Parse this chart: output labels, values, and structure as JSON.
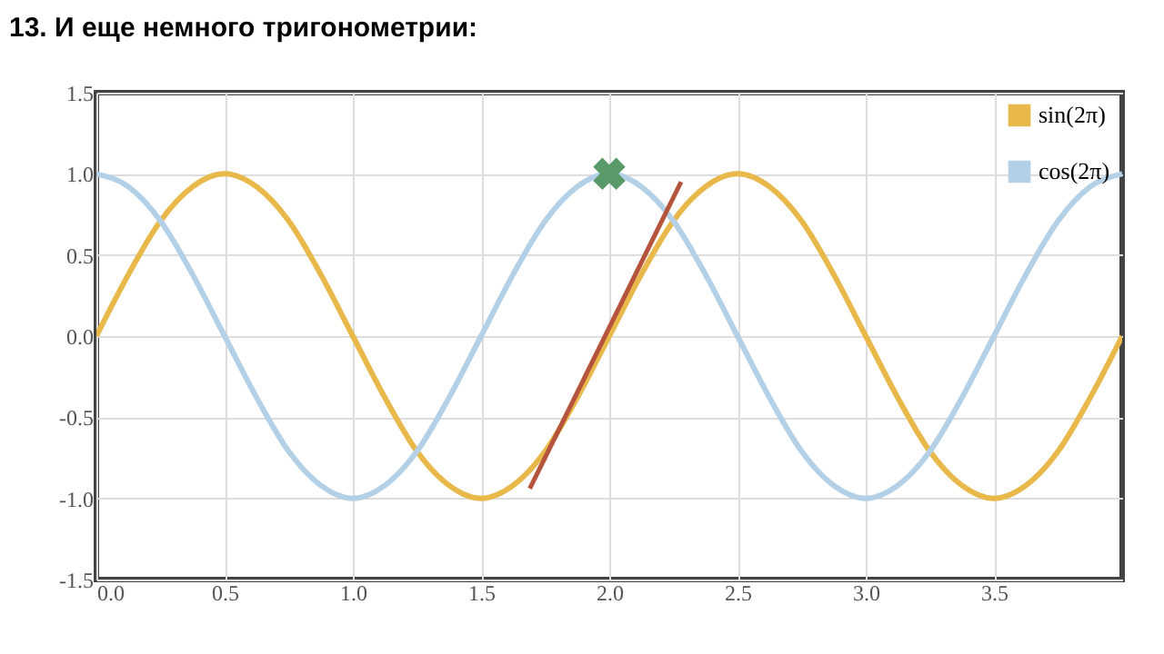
{
  "chart_data": {
    "type": "line",
    "title": "13. И еще немного тригонометрии:",
    "x": [
      0,
      0.125,
      0.25,
      0.375,
      0.5,
      0.625,
      0.75,
      0.875,
      1,
      1.125,
      1.25,
      1.375,
      1.5,
      1.625,
      1.75,
      1.875,
      2,
      2.125,
      2.25,
      2.375,
      2.5,
      2.625,
      2.75,
      2.875,
      3,
      3.125,
      3.25,
      3.375,
      3.5,
      3.625,
      3.75,
      3.875,
      4
    ],
    "series": [
      {
        "name": "sin(2π)",
        "color": "#e8b84a",
        "values": [
          0,
          0.38,
          0.71,
          0.92,
          1,
          0.92,
          0.71,
          0.38,
          0,
          -0.38,
          -0.71,
          -0.92,
          -1,
          -0.92,
          -0.71,
          -0.38,
          0,
          0.38,
          0.71,
          0.92,
          1,
          0.92,
          0.71,
          0.38,
          0,
          -0.38,
          -0.71,
          -0.92,
          -1,
          -0.92,
          -0.71,
          -0.38,
          0
        ]
      },
      {
        "name": "cos(2π)",
        "color": "#b4d0e6",
        "values": [
          1,
          0.92,
          0.71,
          0.38,
          0,
          -0.38,
          -0.71,
          -0.92,
          -1,
          -0.92,
          -0.71,
          -0.38,
          0,
          0.38,
          0.71,
          0.92,
          1,
          0.92,
          0.71,
          0.38,
          0,
          -0.38,
          -0.71,
          -0.92,
          -1,
          -0.92,
          -0.71,
          -0.38,
          0,
          0.38,
          0.71,
          0.92,
          1
        ]
      },
      {
        "type": "line",
        "color": "#b5533c",
        "x": [
          1.69,
          2.28
        ],
        "values": [
          -0.94,
          0.95
        ]
      },
      {
        "type": "scatter",
        "marker": "cross",
        "color": "#5a9a6a",
        "x": [
          2
        ],
        "values": [
          1
        ]
      }
    ],
    "xlim": [
      0,
      4
    ],
    "xticks": [
      {
        "value": 0,
        "label": "0.0"
      },
      {
        "value": 0.5,
        "label": "0.5"
      },
      {
        "value": 1,
        "label": "1.0"
      },
      {
        "value": 1.5,
        "label": "1.5"
      },
      {
        "value": 2,
        "label": "2.0"
      },
      {
        "value": 2.5,
        "label": "2.5"
      },
      {
        "value": 3,
        "label": "3.0"
      },
      {
        "value": 3.5,
        "label": "3.5"
      }
    ],
    "ylim": [
      -1.5,
      1.5
    ],
    "yticks": [
      {
        "value": -1.5,
        "label": "-1.5"
      },
      {
        "value": -1,
        "label": "-1.0"
      },
      {
        "value": -0.5,
        "label": "-0.5"
      },
      {
        "value": 0,
        "label": "0.0"
      },
      {
        "value": 0.5,
        "label": "0.5"
      },
      {
        "value": 1,
        "label": "1.0"
      },
      {
        "value": 1.5,
        "label": "1.5"
      }
    ],
    "grid": true,
    "legend": "top right"
  }
}
